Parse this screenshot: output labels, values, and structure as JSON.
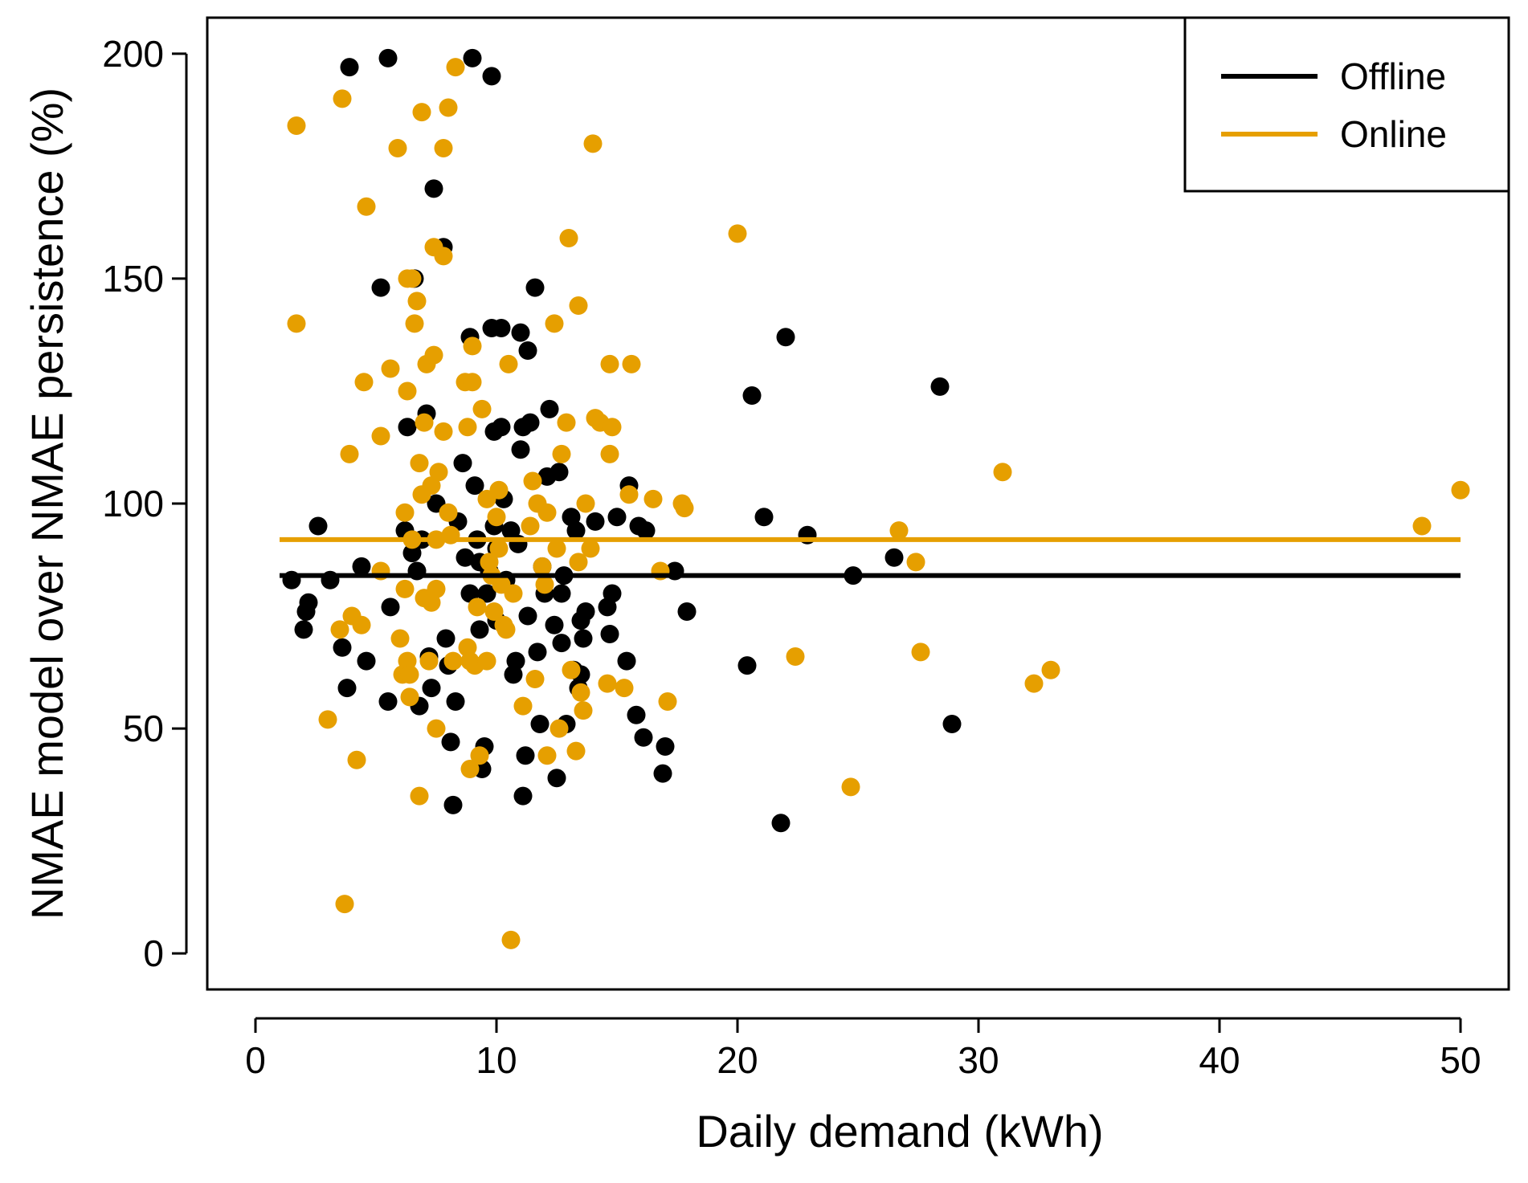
{
  "chart_data": {
    "type": "scatter",
    "title": "",
    "xlabel": "Daily demand (kWh)",
    "ylabel": "NMAE model over NMAE persistence (%)",
    "xlim": [
      -2,
      52
    ],
    "ylim": [
      -8,
      208
    ],
    "xticks": [
      0,
      10,
      20,
      30,
      40,
      50
    ],
    "yticks": [
      0,
      50,
      100,
      150,
      200
    ],
    "xtick_labels": [
      "0",
      "10",
      "20",
      "30",
      "40",
      "50"
    ],
    "ytick_labels": [
      "0",
      "50",
      "100",
      "150",
      "200"
    ],
    "grid": false,
    "legend_position": "top-right",
    "colors": {
      "offline": "#000000",
      "online": "#E69F00"
    },
    "series": [
      {
        "name": "Offline",
        "mean": 84,
        "points": [
          [
            1.5,
            83
          ],
          [
            2.0,
            72
          ],
          [
            2.1,
            76
          ],
          [
            2.2,
            78
          ],
          [
            2.6,
            95
          ],
          [
            3.1,
            83
          ],
          [
            3.6,
            68
          ],
          [
            3.8,
            59
          ],
          [
            3.9,
            197
          ],
          [
            4.4,
            86
          ],
          [
            4.6,
            65
          ],
          [
            5.2,
            148
          ],
          [
            5.5,
            56
          ],
          [
            5.5,
            199
          ],
          [
            5.6,
            77
          ],
          [
            6.2,
            94
          ],
          [
            6.3,
            117
          ],
          [
            6.5,
            89
          ],
          [
            6.6,
            150
          ],
          [
            6.7,
            85
          ],
          [
            6.8,
            55
          ],
          [
            6.9,
            92
          ],
          [
            7.1,
            120
          ],
          [
            7.2,
            66
          ],
          [
            7.3,
            59
          ],
          [
            7.4,
            170
          ],
          [
            7.5,
            100
          ],
          [
            7.8,
            157
          ],
          [
            7.9,
            70
          ],
          [
            8.0,
            64
          ],
          [
            8.1,
            47
          ],
          [
            8.2,
            33
          ],
          [
            8.3,
            56
          ],
          [
            8.4,
            96
          ],
          [
            8.6,
            109
          ],
          [
            8.7,
            88
          ],
          [
            8.9,
            137
          ],
          [
            8.9,
            80
          ],
          [
            9.0,
            199
          ],
          [
            9.1,
            104
          ],
          [
            9.2,
            92
          ],
          [
            9.3,
            87
          ],
          [
            9.3,
            72
          ],
          [
            9.4,
            41
          ],
          [
            9.5,
            46
          ],
          [
            9.6,
            80
          ],
          [
            9.7,
            85
          ],
          [
            9.8,
            139
          ],
          [
            9.8,
            195
          ],
          [
            9.9,
            95
          ],
          [
            9.9,
            116
          ],
          [
            10.0,
            74
          ],
          [
            10.0,
            90
          ],
          [
            10.2,
            139
          ],
          [
            10.2,
            117
          ],
          [
            10.3,
            101
          ],
          [
            10.4,
            83
          ],
          [
            10.6,
            94
          ],
          [
            10.7,
            62
          ],
          [
            10.8,
            65
          ],
          [
            10.9,
            91
          ],
          [
            11.0,
            138
          ],
          [
            11.0,
            112
          ],
          [
            11.1,
            35
          ],
          [
            11.1,
            117
          ],
          [
            11.2,
            44
          ],
          [
            11.3,
            134
          ],
          [
            11.3,
            75
          ],
          [
            11.4,
            118
          ],
          [
            11.6,
            148
          ],
          [
            11.7,
            67
          ],
          [
            11.8,
            51
          ],
          [
            11.9,
            86
          ],
          [
            12.0,
            80
          ],
          [
            12.1,
            106
          ],
          [
            12.2,
            121
          ],
          [
            12.4,
            73
          ],
          [
            12.5,
            39
          ],
          [
            12.6,
            107
          ],
          [
            12.7,
            80
          ],
          [
            12.7,
            69
          ],
          [
            12.8,
            84
          ],
          [
            12.9,
            51
          ],
          [
            13.1,
            97
          ],
          [
            13.2,
            63
          ],
          [
            13.3,
            94
          ],
          [
            13.4,
            59
          ],
          [
            13.5,
            62
          ],
          [
            13.5,
            74
          ],
          [
            13.6,
            70
          ],
          [
            13.7,
            76
          ],
          [
            14.1,
            96
          ],
          [
            14.6,
            77
          ],
          [
            14.7,
            71
          ],
          [
            14.8,
            80
          ],
          [
            15.0,
            97
          ],
          [
            15.4,
            65
          ],
          [
            15.5,
            104
          ],
          [
            15.8,
            53
          ],
          [
            15.9,
            95
          ],
          [
            16.1,
            48
          ],
          [
            16.2,
            94
          ],
          [
            16.9,
            40
          ],
          [
            17.0,
            46
          ],
          [
            17.4,
            85
          ],
          [
            17.9,
            76
          ],
          [
            20.4,
            64
          ],
          [
            20.6,
            124
          ],
          [
            21.1,
            97
          ],
          [
            21.8,
            29
          ],
          [
            22.0,
            137
          ],
          [
            22.9,
            93
          ],
          [
            24.8,
            84
          ],
          [
            26.5,
            88
          ],
          [
            28.4,
            126
          ],
          [
            28.9,
            51
          ]
        ]
      },
      {
        "name": "Online",
        "mean": 92,
        "points": [
          [
            1.7,
            140
          ],
          [
            1.7,
            184
          ],
          [
            3.0,
            52
          ],
          [
            3.5,
            72
          ],
          [
            3.6,
            190
          ],
          [
            3.7,
            11
          ],
          [
            3.9,
            111
          ],
          [
            4.0,
            75
          ],
          [
            4.2,
            43
          ],
          [
            4.4,
            73
          ],
          [
            4.5,
            127
          ],
          [
            4.6,
            166
          ],
          [
            5.2,
            85
          ],
          [
            5.2,
            115
          ],
          [
            5.6,
            130
          ],
          [
            5.9,
            179
          ],
          [
            6.0,
            70
          ],
          [
            6.1,
            62
          ],
          [
            6.2,
            81
          ],
          [
            6.2,
            98
          ],
          [
            6.3,
            125
          ],
          [
            6.3,
            150
          ],
          [
            6.3,
            65
          ],
          [
            6.4,
            57
          ],
          [
            6.4,
            62
          ],
          [
            6.5,
            150
          ],
          [
            6.5,
            92
          ],
          [
            6.6,
            140
          ],
          [
            6.7,
            145
          ],
          [
            6.8,
            109
          ],
          [
            6.8,
            35
          ],
          [
            6.9,
            102
          ],
          [
            6.9,
            187
          ],
          [
            7.0,
            118
          ],
          [
            7.0,
            79
          ],
          [
            7.1,
            131
          ],
          [
            7.2,
            65
          ],
          [
            7.3,
            78
          ],
          [
            7.3,
            104
          ],
          [
            7.4,
            133
          ],
          [
            7.4,
            157
          ],
          [
            7.5,
            81
          ],
          [
            7.5,
            92
          ],
          [
            7.5,
            50
          ],
          [
            7.6,
            107
          ],
          [
            7.8,
            116
          ],
          [
            7.8,
            155
          ],
          [
            7.8,
            179
          ],
          [
            8.0,
            98
          ],
          [
            8.0,
            188
          ],
          [
            8.1,
            93
          ],
          [
            8.2,
            65
          ],
          [
            8.3,
            197
          ],
          [
            8.7,
            127
          ],
          [
            8.8,
            117
          ],
          [
            8.8,
            68
          ],
          [
            8.9,
            65
          ],
          [
            8.9,
            41
          ],
          [
            9.0,
            127
          ],
          [
            9.0,
            135
          ],
          [
            9.1,
            64
          ],
          [
            9.2,
            77
          ],
          [
            9.3,
            44
          ],
          [
            9.4,
            121
          ],
          [
            9.6,
            65
          ],
          [
            9.6,
            101
          ],
          [
            9.7,
            87
          ],
          [
            9.8,
            84
          ],
          [
            9.9,
            76
          ],
          [
            10.0,
            97
          ],
          [
            10.1,
            90
          ],
          [
            10.1,
            103
          ],
          [
            10.2,
            82
          ],
          [
            10.3,
            73
          ],
          [
            10.4,
            72
          ],
          [
            10.5,
            131
          ],
          [
            10.6,
            3
          ],
          [
            10.7,
            80
          ],
          [
            11.1,
            55
          ],
          [
            11.4,
            95
          ],
          [
            11.5,
            105
          ],
          [
            11.6,
            61
          ],
          [
            11.7,
            100
          ],
          [
            11.9,
            86
          ],
          [
            12.0,
            82
          ],
          [
            12.1,
            44
          ],
          [
            12.1,
            98
          ],
          [
            12.4,
            140
          ],
          [
            12.5,
            90
          ],
          [
            12.6,
            50
          ],
          [
            12.7,
            111
          ],
          [
            12.9,
            118
          ],
          [
            13.0,
            159
          ],
          [
            13.1,
            63
          ],
          [
            13.3,
            45
          ],
          [
            13.4,
            87
          ],
          [
            13.4,
            144
          ],
          [
            13.5,
            58
          ],
          [
            13.6,
            54
          ],
          [
            13.7,
            100
          ],
          [
            13.9,
            90
          ],
          [
            14.0,
            180
          ],
          [
            14.1,
            119
          ],
          [
            14.3,
            118
          ],
          [
            14.6,
            60
          ],
          [
            14.7,
            111
          ],
          [
            14.7,
            131
          ],
          [
            14.8,
            117
          ],
          [
            15.3,
            59
          ],
          [
            15.5,
            102
          ],
          [
            15.6,
            131
          ],
          [
            16.5,
            101
          ],
          [
            16.8,
            85
          ],
          [
            17.1,
            56
          ],
          [
            17.7,
            100
          ],
          [
            17.8,
            99
          ],
          [
            20.0,
            160
          ],
          [
            22.4,
            66
          ],
          [
            24.7,
            37
          ],
          [
            26.7,
            94
          ],
          [
            27.4,
            87
          ],
          [
            27.6,
            67
          ],
          [
            31.0,
            107
          ],
          [
            32.3,
            60
          ],
          [
            33.0,
            63
          ],
          [
            48.4,
            95
          ],
          [
            50.0,
            103
          ]
        ]
      }
    ]
  }
}
